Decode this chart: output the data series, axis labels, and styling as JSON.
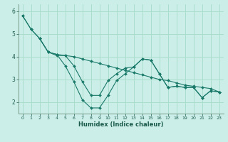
{
  "title": "",
  "xlabel": "Humidex (Indice chaleur)",
  "bg_color": "#cceee8",
  "grid_color": "#aaddcc",
  "line_color": "#1a7a6a",
  "marker_color": "#1a7a6a",
  "xlim": [
    -0.5,
    23.5
  ],
  "ylim": [
    1.5,
    6.3
  ],
  "yticks": [
    2,
    3,
    4,
    5,
    6
  ],
  "xticks": [
    0,
    1,
    2,
    3,
    4,
    5,
    6,
    7,
    8,
    9,
    10,
    11,
    12,
    13,
    14,
    15,
    16,
    17,
    18,
    19,
    20,
    21,
    22,
    23
  ],
  "series1_x": [
    0,
    1,
    2,
    3,
    4,
    5,
    6,
    7,
    8,
    9,
    10,
    11,
    12,
    13,
    14,
    15,
    16,
    17,
    18,
    19,
    20,
    21,
    22,
    23
  ],
  "series1_y": [
    5.8,
    5.2,
    4.8,
    4.2,
    4.1,
    3.6,
    2.9,
    2.1,
    1.75,
    1.75,
    2.3,
    2.95,
    3.25,
    3.55,
    3.9,
    3.85,
    3.25,
    2.65,
    2.7,
    2.65,
    2.65,
    2.2,
    2.5,
    2.45
  ],
  "series2_x": [
    0,
    1,
    2,
    3,
    4,
    5,
    6,
    7,
    8,
    9,
    10,
    11,
    12,
    13,
    14,
    15,
    16,
    17,
    18,
    19,
    20,
    21,
    22,
    23
  ],
  "series2_y": [
    5.8,
    5.2,
    4.8,
    4.2,
    4.05,
    4.05,
    3.6,
    2.9,
    2.3,
    2.3,
    2.95,
    3.25,
    3.5,
    3.55,
    3.9,
    3.85,
    3.25,
    2.65,
    2.7,
    2.65,
    2.65,
    2.2,
    2.5,
    2.45
  ],
  "series3_x": [
    2,
    3,
    4,
    5,
    6,
    7,
    8,
    9,
    10,
    11,
    12,
    13,
    14,
    15,
    16,
    17,
    18,
    19,
    20,
    21,
    22,
    23
  ],
  "series3_y": [
    4.8,
    4.2,
    4.1,
    4.05,
    4.0,
    3.9,
    3.8,
    3.7,
    3.6,
    3.5,
    3.4,
    3.3,
    3.2,
    3.1,
    3.0,
    2.95,
    2.85,
    2.75,
    2.7,
    2.65,
    2.6,
    2.45
  ]
}
